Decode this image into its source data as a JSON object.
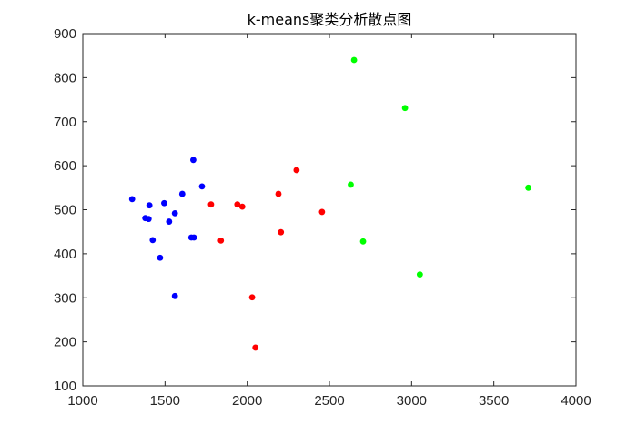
{
  "chart_data": {
    "type": "scatter",
    "title": "k-means聚类分析散点图",
    "xlabel": "",
    "ylabel": "",
    "xlim": [
      1000,
      4000
    ],
    "ylim": [
      100,
      900
    ],
    "xticks": [
      1000,
      1500,
      2000,
      2500,
      3000,
      3500,
      4000
    ],
    "yticks": [
      100,
      200,
      300,
      400,
      500,
      600,
      700,
      800,
      900
    ],
    "grid": false,
    "legend": "none",
    "series": [
      {
        "color": "#0000ff",
        "points": [
          [
            1300,
            524
          ],
          [
            1380,
            481
          ],
          [
            1400,
            479
          ],
          [
            1405,
            510
          ],
          [
            1425,
            431
          ],
          [
            1470,
            391
          ],
          [
            1495,
            515
          ],
          [
            1525,
            473
          ],
          [
            1560,
            492
          ],
          [
            1560,
            304
          ],
          [
            1605,
            536
          ],
          [
            1660,
            437
          ],
          [
            1672,
            613
          ],
          [
            1676,
            437
          ],
          [
            1725,
            553
          ]
        ]
      },
      {
        "color": "#ff0000",
        "points": [
          [
            1780,
            512
          ],
          [
            1840,
            430
          ],
          [
            1940,
            512
          ],
          [
            1970,
            507
          ],
          [
            2030,
            301
          ],
          [
            2050,
            187
          ],
          [
            2190,
            536
          ],
          [
            2205,
            449
          ],
          [
            2300,
            590
          ],
          [
            2455,
            495
          ]
        ]
      },
      {
        "color": "#00ff00",
        "points": [
          [
            2630,
            557
          ],
          [
            2650,
            840
          ],
          [
            2705,
            428
          ],
          [
            2960,
            731
          ],
          [
            3050,
            353
          ],
          [
            3710,
            550
          ]
        ]
      }
    ]
  }
}
